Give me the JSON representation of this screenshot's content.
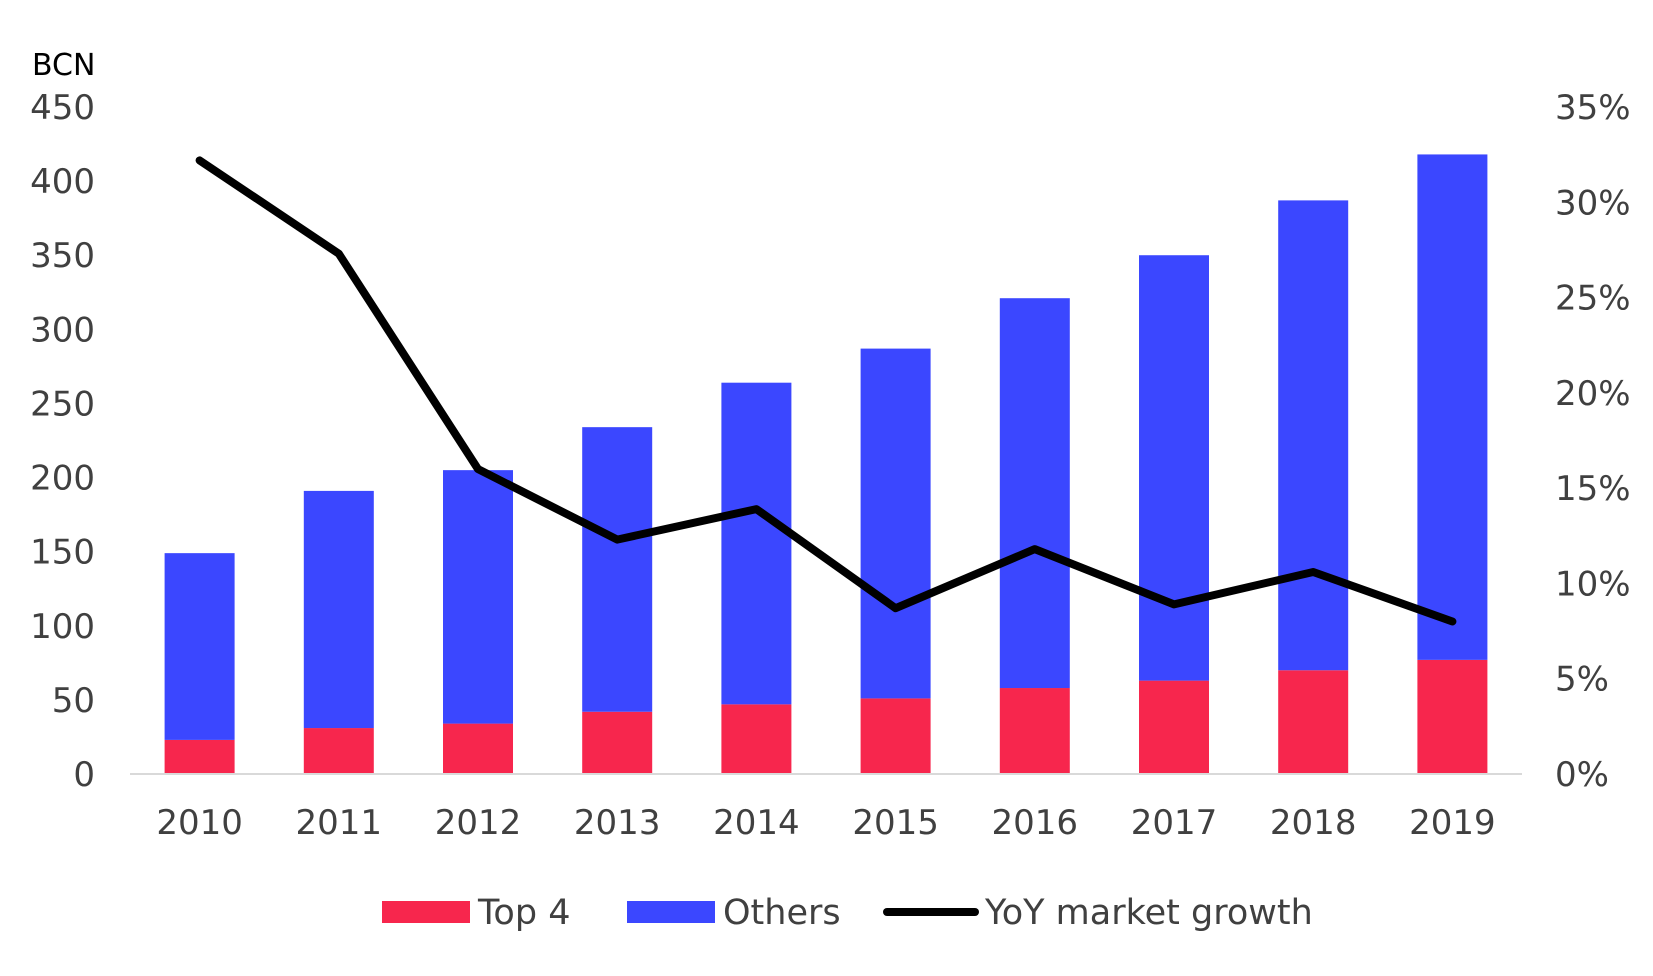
{
  "chart_data": {
    "type": "bar",
    "stacked": true,
    "categories": [
      "2010",
      "2011",
      "2012",
      "2013",
      "2014",
      "2015",
      "2016",
      "2017",
      "2018",
      "2019"
    ],
    "series": [
      {
        "name": "Top 4",
        "type": "bar",
        "axis": "left",
        "values": [
          23,
          31,
          34,
          42,
          47,
          51,
          58,
          63,
          70,
          77
        ]
      },
      {
        "name": "Others",
        "type": "bar",
        "axis": "left",
        "values": [
          126,
          160,
          171,
          192,
          217,
          236,
          263,
          287,
          317,
          341
        ]
      },
      {
        "name": "YoY market growth",
        "type": "line",
        "axis": "right",
        "values": [
          32.2,
          27.3,
          16.0,
          12.3,
          13.9,
          8.7,
          11.8,
          8.9,
          10.6,
          8.0
        ]
      }
    ],
    "ylabel": "BCN",
    "ylim": [
      0,
      450
    ],
    "yticks": [
      "0",
      "50",
      "100",
      "150",
      "200",
      "250",
      "300",
      "350",
      "400",
      "450"
    ],
    "y2lim": [
      0,
      35
    ],
    "y2ticks": [
      "0%",
      "5%",
      "10%",
      "15%",
      "20%",
      "25%",
      "30%",
      "35%"
    ],
    "grid": false,
    "legend": "bottom",
    "colors": {
      "Top 4": "#f7264d",
      "Others": "#3b47ff",
      "YoY market growth": "#000000",
      "axis": "#d9d9d9",
      "text": "#404040"
    }
  }
}
